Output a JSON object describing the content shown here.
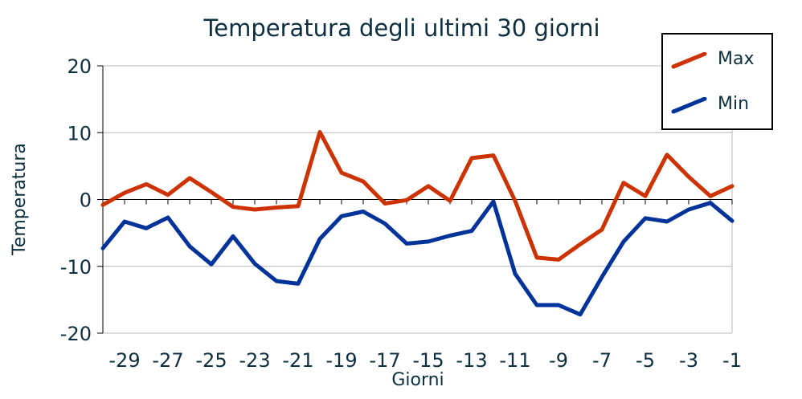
{
  "chart_data": {
    "type": "line",
    "title": "Temperatura degli ultimi 30 giorni",
    "xlabel": "Giorni",
    "ylabel": "Temperatura",
    "x": [
      -30,
      -29,
      -28,
      -27,
      -26,
      -25,
      -24,
      -23,
      -22,
      -21,
      -20,
      -19,
      -18,
      -17,
      -16,
      -15,
      -14,
      -13,
      -12,
      -11,
      -10,
      -9,
      -8,
      -7,
      -6,
      -5,
      -4,
      -3,
      -2,
      -1
    ],
    "xticks": [
      -29,
      -27,
      -25,
      -23,
      -21,
      -19,
      -17,
      -15,
      -13,
      -11,
      -9,
      -7,
      -5,
      -3,
      -1
    ],
    "xtick_labels": [
      "-29",
      "-27",
      "-25",
      "-23",
      "-21",
      "-19",
      "-17",
      "-15",
      "-13",
      "-11",
      "-9",
      "-7",
      "-5",
      "-3",
      "-1"
    ],
    "xlim": [
      -30,
      -1
    ],
    "ylim": [
      -20,
      20
    ],
    "yticks": [
      -20,
      -10,
      0,
      10,
      20
    ],
    "ytick_labels": [
      "-20",
      "-10",
      "0",
      "10",
      "20"
    ],
    "grid": true,
    "legend_position": "top-right",
    "series": [
      {
        "name": "Max",
        "color": "#cc3300",
        "values": [
          -0.8,
          1.0,
          2.3,
          0.7,
          3.2,
          1.1,
          -1.1,
          -1.5,
          -1.2,
          -1.0,
          10.1,
          4.0,
          2.7,
          -0.6,
          -0.1,
          2.0,
          -0.2,
          6.2,
          6.6,
          -0.2,
          -8.7,
          -9.0,
          -6.7,
          -4.5,
          2.5,
          0.5,
          6.7,
          3.4,
          0.5,
          2.0
        ]
      },
      {
        "name": "Min",
        "color": "#003399",
        "values": [
          -7.3,
          -3.3,
          -4.3,
          -2.7,
          -7.0,
          -9.7,
          -5.5,
          -9.6,
          -12.2,
          -12.6,
          -5.9,
          -2.5,
          -1.8,
          -3.6,
          -6.6,
          -6.3,
          -5.4,
          -4.7,
          -0.3,
          -11.1,
          -15.8,
          -15.8,
          -17.2,
          -11.6,
          -6.3,
          -2.8,
          -3.3,
          -1.5,
          -0.5,
          -3.2
        ]
      }
    ]
  }
}
